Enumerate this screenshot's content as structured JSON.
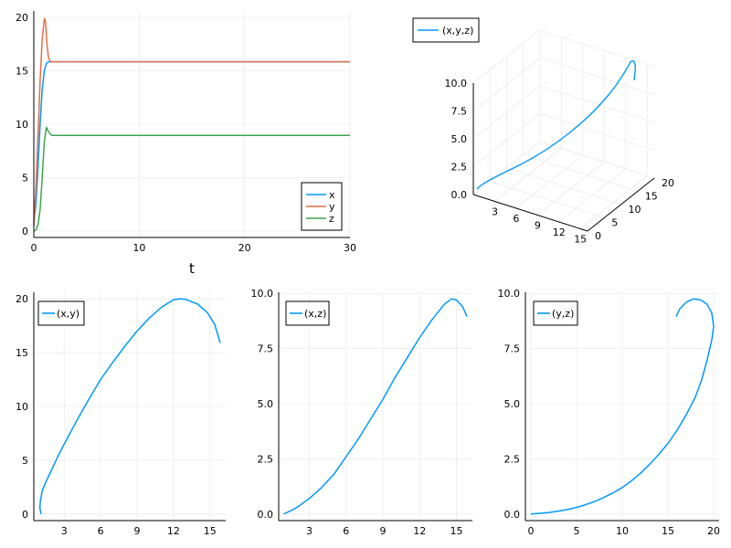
{
  "chart_data": [
    {
      "id": "time-series",
      "type": "line",
      "xlabel": "t",
      "ylabel": "",
      "xlim": [
        0,
        30
      ],
      "ylim": [
        -0.6,
        20.6
      ],
      "xticks": [
        0,
        10,
        20,
        30
      ],
      "yticks": [
        0,
        5,
        10,
        15,
        20
      ],
      "grid": true,
      "legend": "bottom-right",
      "series": [
        {
          "name": "x",
          "color": "#009AFA",
          "x": [
            0,
            0.2,
            0.4,
            0.6,
            0.8,
            1.0,
            1.2,
            1.4,
            2,
            30
          ],
          "y": [
            0.8,
            2.5,
            6,
            10,
            13.3,
            15,
            15.7,
            15.85,
            15.85,
            15.85
          ]
        },
        {
          "name": "y",
          "color": "#E36F47",
          "x": [
            0,
            0.2,
            0.4,
            0.6,
            0.8,
            1.0,
            1.1,
            1.25,
            1.4,
            1.6,
            2,
            30
          ],
          "y": [
            0.5,
            4,
            9,
            14,
            18,
            19.9,
            19.7,
            17.5,
            16.2,
            15.85,
            15.85,
            15.85
          ]
        },
        {
          "name": "z",
          "color": "#3EA44E",
          "x": [
            0,
            0.2,
            0.4,
            0.6,
            0.8,
            1.0,
            1.2,
            1.4,
            1.7,
            2.2,
            30
          ],
          "y": [
            0,
            0.1,
            0.6,
            2,
            5,
            8.4,
            9.7,
            9.3,
            8.95,
            8.95,
            8.95
          ]
        }
      ]
    },
    {
      "id": "trajectory-3d",
      "type": "line",
      "xlim": [
        0,
        16
      ],
      "ylim": [
        0,
        20
      ],
      "zlim": [
        0,
        10
      ],
      "xticks": [
        3,
        6,
        9,
        12,
        15
      ],
      "yticks": [
        0,
        5,
        10,
        15,
        20
      ],
      "zticks": [
        "0.0",
        "2.5",
        "5.0",
        "7.5",
        "10.0"
      ],
      "grid": true,
      "legend": "top-left",
      "series": [
        {
          "name": "(x,y,z)",
          "color": "#009AFA"
        }
      ]
    },
    {
      "id": "xy-plot",
      "type": "line",
      "xlim": [
        0.5,
        16.3
      ],
      "ylim": [
        -0.6,
        20.6
      ],
      "xticks": [
        3,
        6,
        9,
        12,
        15
      ],
      "yticks": [
        0,
        5,
        10,
        15,
        20
      ],
      "grid": true,
      "legend": "top-left",
      "series": [
        {
          "name": "(x,y)",
          "color": "#009AFA",
          "x": [
            1.1,
            1.0,
            1.05,
            1.2,
            1.5,
            2,
            2.5,
            3,
            4,
            5,
            6,
            7,
            8,
            9,
            10,
            11,
            12,
            12.5,
            13,
            14,
            14.8,
            15.4,
            15.85
          ],
          "y": [
            0,
            0.6,
            1.3,
            2.2,
            3,
            4.2,
            5.4,
            6.5,
            8.6,
            10.6,
            12.5,
            14.1,
            15.6,
            17,
            18.2,
            19.2,
            19.9,
            20,
            19.95,
            19.5,
            18.7,
            17.6,
            15.9
          ]
        }
      ]
    },
    {
      "id": "xz-plot",
      "type": "line",
      "xlim": [
        0.5,
        16.3
      ],
      "ylim": [
        -0.3,
        10.05
      ],
      "xticks": [
        3,
        6,
        9,
        12,
        15
      ],
      "yticks": [
        0,
        2.5,
        5,
        7.5,
        10
      ],
      "ytick_labels": [
        "0.0",
        "2.5",
        "5.0",
        "7.5",
        "10.0"
      ],
      "grid": true,
      "legend": "top-left",
      "series": [
        {
          "name": "(x,z)",
          "color": "#009AFA",
          "x": [
            0.9,
            1.5,
            2,
            3,
            4,
            5,
            6,
            7,
            8,
            9,
            10,
            11,
            12,
            13,
            14,
            14.6,
            15,
            15.5,
            15.85
          ],
          "y": [
            0,
            0.15,
            0.3,
            0.7,
            1.2,
            1.8,
            2.6,
            3.4,
            4.3,
            5.2,
            6.2,
            7.1,
            8,
            8.8,
            9.5,
            9.75,
            9.7,
            9.4,
            8.95
          ]
        }
      ]
    },
    {
      "id": "yz-plot",
      "type": "line",
      "xlim": [
        -0.6,
        20.6
      ],
      "ylim": [
        -0.3,
        10.05
      ],
      "xticks": [
        0,
        5,
        10,
        15,
        20
      ],
      "yticks": [
        0,
        2.5,
        5,
        7.5,
        10
      ],
      "ytick_labels": [
        "0.0",
        "2.5",
        "5.0",
        "7.5",
        "10.0"
      ],
      "grid": true,
      "legend": "top-left",
      "series": [
        {
          "name": "(y,z)",
          "color": "#009AFA",
          "x": [
            0,
            1,
            2,
            3,
            4,
            5,
            6,
            7,
            8,
            9,
            10,
            11,
            12,
            13,
            14,
            15,
            16,
            17,
            18,
            18.7,
            19.3,
            19.8,
            20,
            19.8,
            19.3,
            18.6,
            17.8,
            17,
            16.3,
            15.9
          ],
          "y": [
            0,
            0.03,
            0.07,
            0.13,
            0.2,
            0.3,
            0.42,
            0.57,
            0.75,
            0.96,
            1.2,
            1.5,
            1.85,
            2.25,
            2.7,
            3.2,
            3.8,
            4.5,
            5.3,
            6.1,
            7,
            7.9,
            8.5,
            9.1,
            9.5,
            9.7,
            9.75,
            9.6,
            9.3,
            8.95
          ]
        }
      ]
    }
  ]
}
